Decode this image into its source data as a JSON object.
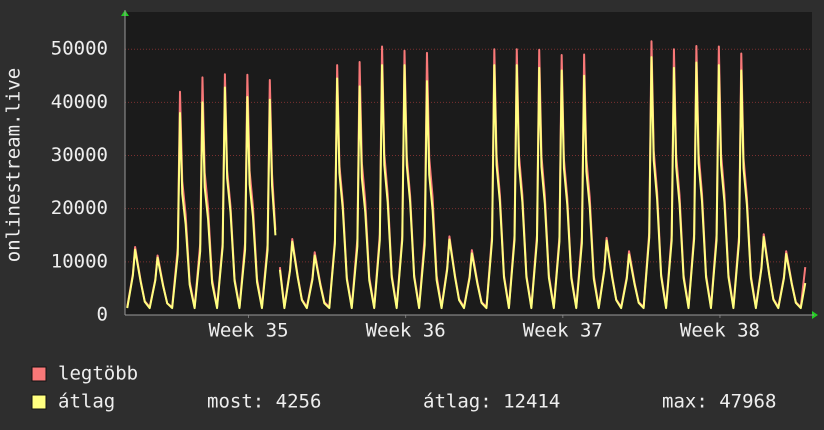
{
  "chart_data": {
    "type": "line",
    "y_label": "onlinestream.live",
    "xlim": [
      0,
      30.6
    ],
    "xticks": [
      {
        "value": 5.5,
        "label": "Week 35"
      },
      {
        "value": 12.5,
        "label": "Week 36"
      },
      {
        "value": 19.5,
        "label": "Week 37"
      },
      {
        "value": 26.5,
        "label": "Week 38"
      }
    ],
    "ylim": [
      0,
      57000
    ],
    "yticks": [
      0,
      10000,
      20000,
      30000,
      40000,
      50000
    ],
    "grid": true,
    "x": [
      0.1,
      0.35,
      0.45,
      0.55,
      0.7,
      0.88,
      1.1,
      1.35,
      1.45,
      1.55,
      1.7,
      1.88,
      2.1,
      2.35,
      2.45,
      2.55,
      2.7,
      2.88,
      3.1,
      3.35,
      3.45,
      3.55,
      3.7,
      3.88,
      4.1,
      4.35,
      4.45,
      4.55,
      4.7,
      4.88,
      5.1,
      5.35,
      5.45,
      5.55,
      5.7,
      5.88,
      6.1,
      6.35,
      6.45,
      6.55,
      6.7,
      6.8,
      6.9,
      7.1,
      7.35,
      7.45,
      7.55,
      7.7,
      7.88,
      8.1,
      8.35,
      8.45,
      8.55,
      8.7,
      8.88,
      9.1,
      9.35,
      9.45,
      9.55,
      9.7,
      9.88,
      10.1,
      10.35,
      10.45,
      10.55,
      10.7,
      10.88,
      11.1,
      11.35,
      11.45,
      11.55,
      11.7,
      11.88,
      12.1,
      12.35,
      12.45,
      12.55,
      12.7,
      12.88,
      13.1,
      13.35,
      13.45,
      13.55,
      13.7,
      13.88,
      14.1,
      14.35,
      14.45,
      14.55,
      14.7,
      14.88,
      15.1,
      15.35,
      15.45,
      15.55,
      15.7,
      15.88,
      16.1,
      16.35,
      16.45,
      16.55,
      16.7,
      16.88,
      17.1,
      17.35,
      17.45,
      17.55,
      17.7,
      17.88,
      18.1,
      18.35,
      18.45,
      18.55,
      18.7,
      18.88,
      19.1,
      19.35,
      19.45,
      19.55,
      19.7,
      19.88,
      20.1,
      20.35,
      20.45,
      20.55,
      20.7,
      20.88,
      21.1,
      21.35,
      21.45,
      21.55,
      21.7,
      21.88,
      22.1,
      22.35,
      22.45,
      22.55,
      22.7,
      22.88,
      23.1,
      23.35,
      23.45,
      23.55,
      23.7,
      23.88,
      24.1,
      24.35,
      24.45,
      24.55,
      24.7,
      24.88,
      25.1,
      25.35,
      25.45,
      25.55,
      25.7,
      25.88,
      26.1,
      26.35,
      26.45,
      26.55,
      26.7,
      26.88,
      27.1,
      27.35,
      27.45,
      27.55,
      27.7,
      27.88,
      28.1,
      28.35,
      28.45,
      28.55,
      28.7,
      28.88,
      29.1,
      29.35,
      29.45,
      29.55,
      29.7,
      29.88,
      30.1,
      30.3
    ],
    "series": [
      {
        "name": "legtöbb",
        "color": "#f87878",
        "values": [
          1500,
          7700,
          12800,
          10200,
          6400,
          2600,
          1500,
          6700,
          11200,
          9000,
          5600,
          2200,
          1500,
          12600,
          42000,
          25200,
          18900,
          6300,
          1500,
          13400,
          44700,
          26800,
          20100,
          6700,
          1500,
          13600,
          45300,
          27200,
          20400,
          6800,
          1500,
          13600,
          45200,
          27100,
          20300,
          6800,
          1500,
          13300,
          44200,
          26500,
          16000,
          null,
          9000,
          1500,
          8600,
          14300,
          11400,
          7200,
          2900,
          1500,
          7100,
          11800,
          9400,
          5900,
          2400,
          1500,
          14100,
          47000,
          28200,
          21200,
          7100,
          1500,
          14300,
          47600,
          28600,
          21400,
          7100,
          1500,
          15200,
          50500,
          30300,
          22700,
          7600,
          1500,
          14900,
          49700,
          29800,
          22400,
          7500,
          1500,
          14800,
          49300,
          29600,
          22200,
          7400,
          1500,
          8900,
          14800,
          11800,
          7400,
          3000,
          1500,
          7300,
          12200,
          9800,
          6100,
          2400,
          1500,
          15000,
          50000,
          30000,
          22500,
          7500,
          1500,
          15000,
          50000,
          30000,
          22500,
          7500,
          1500,
          15000,
          49900,
          29900,
          22500,
          7500,
          1500,
          14700,
          48900,
          29300,
          22000,
          7300,
          1500,
          14700,
          49000,
          29400,
          22100,
          7400,
          1500,
          8700,
          14500,
          11600,
          7300,
          2900,
          1500,
          7200,
          12000,
          9600,
          6000,
          2400,
          1500,
          15500,
          51500,
          30900,
          23200,
          7700,
          1500,
          15000,
          50000,
          30000,
          22500,
          7500,
          1500,
          15200,
          50600,
          30400,
          22800,
          7600,
          1500,
          15200,
          50500,
          30300,
          22700,
          7600,
          1500,
          14800,
          49200,
          29500,
          22100,
          7400,
          1500,
          9100,
          15200,
          12200,
          7600,
          3000,
          1500,
          7200,
          12000,
          9600,
          6000,
          2400,
          1500,
          9000
        ]
      },
      {
        "name": "átlag",
        "color": "#ffff80",
        "values": [
          1300,
          7400,
          12300,
          9800,
          6200,
          2500,
          1300,
          6500,
          10800,
          8600,
          5400,
          2200,
          1300,
          11400,
          38000,
          22800,
          17100,
          5700,
          1300,
          12000,
          40000,
          24000,
          18000,
          6000,
          1300,
          12800,
          42800,
          25700,
          19300,
          6400,
          1300,
          12300,
          41000,
          24600,
          18500,
          6200,
          1300,
          12200,
          40500,
          24300,
          15000,
          null,
          8500,
          1300,
          8300,
          13800,
          11000,
          6900,
          2800,
          1300,
          6700,
          11200,
          9000,
          5600,
          2200,
          1300,
          13400,
          44500,
          26700,
          20000,
          6700,
          1300,
          12900,
          43000,
          25800,
          19400,
          6500,
          1300,
          14100,
          47000,
          28200,
          21200,
          7100,
          1300,
          14100,
          47000,
          28200,
          21200,
          7100,
          1300,
          13200,
          44000,
          26400,
          19800,
          6600,
          1300,
          8500,
          14200,
          11400,
          7100,
          2800,
          1300,
          7000,
          11600,
          9300,
          5800,
          2300,
          1300,
          14100,
          47000,
          28200,
          21200,
          7100,
          1300,
          14100,
          47000,
          28200,
          21200,
          7100,
          1300,
          14000,
          46500,
          27900,
          20900,
          7000,
          1300,
          13800,
          46000,
          27600,
          20700,
          6900,
          1300,
          13500,
          45000,
          27000,
          20300,
          6800,
          1300,
          8400,
          14000,
          11200,
          7000,
          2800,
          1300,
          6800,
          11400,
          9100,
          5700,
          2300,
          1300,
          14600,
          48500,
          29100,
          21800,
          7300,
          1300,
          14000,
          46500,
          27900,
          20900,
          7000,
          1300,
          14300,
          47500,
          28500,
          21400,
          7100,
          1300,
          14100,
          47000,
          28200,
          21200,
          7100,
          1300,
          13800,
          46000,
          27600,
          20700,
          6900,
          1300,
          8800,
          14700,
          11800,
          7400,
          2900,
          1300,
          6900,
          11500,
          9200,
          5800,
          2300,
          1300,
          6000
        ]
      }
    ],
    "stats": [
      "most: 4256",
      "átlag: 12414",
      "max: 47968"
    ]
  }
}
